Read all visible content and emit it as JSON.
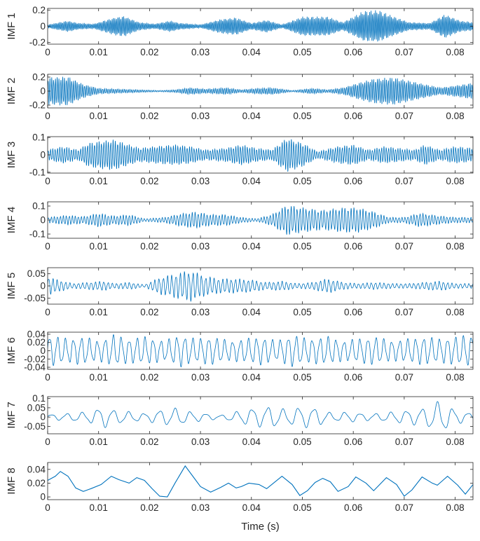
{
  "chart_data": {
    "type": "line",
    "xlabel": "Time (s)",
    "series_color": "#0072BD",
    "axis_color": "#262626",
    "x_range": [
      0,
      0.0835
    ],
    "x_ticks": [
      0,
      0.01,
      0.02,
      0.03,
      0.04,
      0.05,
      0.06,
      0.07,
      0.08
    ],
    "x_tick_labels": [
      "0",
      "0.01",
      "0.02",
      "0.03",
      "0.04",
      "0.05",
      "0.06",
      "0.07",
      "0.08"
    ],
    "panels": [
      {
        "ylabel": "IMF 1",
        "ylim": [
          -0.22,
          0.22
        ],
        "yticks": [
          -0.2,
          0,
          0.2
        ],
        "ytick_labels": [
          "-0.2",
          "0",
          "0.2"
        ],
        "freq_hz": 3500,
        "wave": "carrier",
        "envelope": [
          [
            0,
            0.02
          ],
          [
            0.004,
            0.07
          ],
          [
            0.006,
            0.04
          ],
          [
            0.009,
            0.03
          ],
          [
            0.013,
            0.11
          ],
          [
            0.015,
            0.13
          ],
          [
            0.018,
            0.05
          ],
          [
            0.021,
            0.03
          ],
          [
            0.024,
            0.07
          ],
          [
            0.026,
            0.04
          ],
          [
            0.03,
            0.02
          ],
          [
            0.034,
            0.09
          ],
          [
            0.037,
            0.11
          ],
          [
            0.04,
            0.04
          ],
          [
            0.043,
            0.08
          ],
          [
            0.046,
            0.02
          ],
          [
            0.05,
            0.12
          ],
          [
            0.055,
            0.12
          ],
          [
            0.058,
            0.05
          ],
          [
            0.062,
            0.19
          ],
          [
            0.065,
            0.2
          ],
          [
            0.068,
            0.12
          ],
          [
            0.071,
            0.05
          ],
          [
            0.075,
            0.04
          ],
          [
            0.078,
            0.15
          ],
          [
            0.081,
            0.07
          ],
          [
            0.0835,
            0.05
          ]
        ]
      },
      {
        "ylabel": "IMF 2",
        "ylim": [
          -0.24,
          0.24
        ],
        "yticks": [
          -0.2,
          0,
          0.2
        ],
        "ytick_labels": [
          "-0.2",
          "0",
          "0.2"
        ],
        "freq_hz": 2800,
        "wave": "carrier",
        "envelope": [
          [
            0,
            0.2
          ],
          [
            0.004,
            0.21
          ],
          [
            0.007,
            0.1
          ],
          [
            0.01,
            0.04
          ],
          [
            0.014,
            0.03
          ],
          [
            0.018,
            0.02
          ],
          [
            0.022,
            0.01
          ],
          [
            0.025,
            0.02
          ],
          [
            0.028,
            0.05
          ],
          [
            0.031,
            0.03
          ],
          [
            0.035,
            0.05
          ],
          [
            0.038,
            0.02
          ],
          [
            0.041,
            0.04
          ],
          [
            0.044,
            0.05
          ],
          [
            0.048,
            0.01
          ],
          [
            0.052,
            0.04
          ],
          [
            0.055,
            0.02
          ],
          [
            0.058,
            0.05
          ],
          [
            0.061,
            0.12
          ],
          [
            0.064,
            0.18
          ],
          [
            0.068,
            0.2
          ],
          [
            0.071,
            0.15
          ],
          [
            0.074,
            0.1
          ],
          [
            0.077,
            0.05
          ],
          [
            0.08,
            0.08
          ],
          [
            0.0835,
            0.12
          ]
        ]
      },
      {
        "ylabel": "IMF 3",
        "ylim": [
          -0.105,
          0.105
        ],
        "yticks": [
          -0.1,
          0,
          0.1
        ],
        "ytick_labels": [
          "-0.1",
          "0",
          "0.1"
        ],
        "freq_hz": 2200,
        "wave": "carrier",
        "envelope": [
          [
            0,
            0.03
          ],
          [
            0.003,
            0.05
          ],
          [
            0.006,
            0.03
          ],
          [
            0.008,
            0.07
          ],
          [
            0.01,
            0.08
          ],
          [
            0.013,
            0.09
          ],
          [
            0.016,
            0.06
          ],
          [
            0.018,
            0.04
          ],
          [
            0.021,
            0.05
          ],
          [
            0.025,
            0.06
          ],
          [
            0.028,
            0.05
          ],
          [
            0.031,
            0.03
          ],
          [
            0.035,
            0.04
          ],
          [
            0.038,
            0.06
          ],
          [
            0.041,
            0.04
          ],
          [
            0.044,
            0.03
          ],
          [
            0.047,
            0.1
          ],
          [
            0.05,
            0.07
          ],
          [
            0.053,
            0.02
          ],
          [
            0.057,
            0.05
          ],
          [
            0.06,
            0.06
          ],
          [
            0.063,
            0.03
          ],
          [
            0.066,
            0.05
          ],
          [
            0.069,
            0.04
          ],
          [
            0.072,
            0.03
          ],
          [
            0.074,
            0.06
          ],
          [
            0.077,
            0.03
          ],
          [
            0.08,
            0.05
          ],
          [
            0.0835,
            0.04
          ]
        ]
      },
      {
        "ylabel": "IMF 4",
        "ylim": [
          -0.13,
          0.13
        ],
        "yticks": [
          -0.1,
          0,
          0.1
        ],
        "ytick_labels": [
          "-0.1",
          "0",
          "0.1"
        ],
        "freq_hz": 1700,
        "wave": "carrier",
        "envelope": [
          [
            0,
            0.02
          ],
          [
            0.004,
            0.035
          ],
          [
            0.007,
            0.025
          ],
          [
            0.01,
            0.05
          ],
          [
            0.013,
            0.03
          ],
          [
            0.016,
            0.04
          ],
          [
            0.019,
            0.01
          ],
          [
            0.023,
            0.02
          ],
          [
            0.026,
            0.045
          ],
          [
            0.029,
            0.06
          ],
          [
            0.032,
            0.04
          ],
          [
            0.035,
            0.04
          ],
          [
            0.038,
            0.02
          ],
          [
            0.041,
            0.01
          ],
          [
            0.044,
            0.04
          ],
          [
            0.047,
            0.11
          ],
          [
            0.05,
            0.09
          ],
          [
            0.054,
            0.07
          ],
          [
            0.058,
            0.09
          ],
          [
            0.061,
            0.09
          ],
          [
            0.064,
            0.06
          ],
          [
            0.067,
            0.02
          ],
          [
            0.07,
            0.02
          ],
          [
            0.073,
            0.05
          ],
          [
            0.077,
            0.03
          ],
          [
            0.08,
            0.02
          ],
          [
            0.0835,
            0.02
          ]
        ]
      },
      {
        "ylabel": "IMF 5",
        "ylim": [
          -0.075,
          0.075
        ],
        "yticks": [
          -0.05,
          0,
          0.05
        ],
        "ytick_labels": [
          "-0.05",
          "0",
          "0.05"
        ],
        "freq_hz": 1200,
        "wave": "carrier",
        "envelope": [
          [
            0,
            0.04
          ],
          [
            0.002,
            0.025
          ],
          [
            0.005,
            0.01
          ],
          [
            0.008,
            0.015
          ],
          [
            0.011,
            0.02
          ],
          [
            0.013,
            0.01
          ],
          [
            0.016,
            0.015
          ],
          [
            0.019,
            0.005
          ],
          [
            0.022,
            0.035
          ],
          [
            0.025,
            0.05
          ],
          [
            0.028,
            0.065
          ],
          [
            0.031,
            0.04
          ],
          [
            0.034,
            0.03
          ],
          [
            0.037,
            0.03
          ],
          [
            0.04,
            0.025
          ],
          [
            0.043,
            0.015
          ],
          [
            0.046,
            0.02
          ],
          [
            0.049,
            0.01
          ],
          [
            0.052,
            0.015
          ],
          [
            0.055,
            0.03
          ],
          [
            0.058,
            0.015
          ],
          [
            0.061,
            0.01
          ],
          [
            0.064,
            0.015
          ],
          [
            0.068,
            0.01
          ],
          [
            0.071,
            0.01
          ],
          [
            0.074,
            0.015
          ],
          [
            0.077,
            0.02
          ],
          [
            0.08,
            0.01
          ],
          [
            0.0835,
            0.01
          ]
        ]
      },
      {
        "ylabel": "IMF 6",
        "ylim": [
          -0.045,
          0.045
        ],
        "yticks": [
          -0.04,
          -0.02,
          0,
          0.02,
          0.04
        ],
        "ytick_labels": [
          "-0.04",
          "-0.02",
          "0",
          "0.02",
          "0.04"
        ],
        "freq_hz": 640,
        "wave": "carrier",
        "envelope": [
          [
            0,
            0.04
          ],
          [
            0.004,
            0.03
          ],
          [
            0.007,
            0.035
          ],
          [
            0.01,
            0.025
          ],
          [
            0.013,
            0.04
          ],
          [
            0.016,
            0.03
          ],
          [
            0.019,
            0.035
          ],
          [
            0.023,
            0.025
          ],
          [
            0.026,
            0.04
          ],
          [
            0.029,
            0.03
          ],
          [
            0.032,
            0.035
          ],
          [
            0.036,
            0.025
          ],
          [
            0.039,
            0.03
          ],
          [
            0.042,
            0.035
          ],
          [
            0.045,
            0.025
          ],
          [
            0.048,
            0.04
          ],
          [
            0.051,
            0.03
          ],
          [
            0.055,
            0.035
          ],
          [
            0.058,
            0.025
          ],
          [
            0.061,
            0.03
          ],
          [
            0.064,
            0.035
          ],
          [
            0.068,
            0.025
          ],
          [
            0.071,
            0.03
          ],
          [
            0.074,
            0.035
          ],
          [
            0.077,
            0.03
          ],
          [
            0.08,
            0.035
          ],
          [
            0.0835,
            0.04
          ]
        ]
      },
      {
        "ylabel": "IMF 7",
        "ylim": [
          -0.09,
          0.11
        ],
        "yticks": [
          -0.05,
          0,
          0.05,
          0.1
        ],
        "ytick_labels": [
          "-0.05",
          "0",
          "0.05",
          "0.1"
        ],
        "freq_hz": 330,
        "wave": "carrier",
        "envelope": [
          [
            0,
            0.015
          ],
          [
            0.004,
            0.02
          ],
          [
            0.008,
            0.03
          ],
          [
            0.011,
            0.06
          ],
          [
            0.013,
            0.04
          ],
          [
            0.016,
            0.03
          ],
          [
            0.019,
            0.02
          ],
          [
            0.022,
            0.04
          ],
          [
            0.025,
            0.05
          ],
          [
            0.028,
            0.03
          ],
          [
            0.031,
            0.02
          ],
          [
            0.034,
            0.01
          ],
          [
            0.037,
            0.03
          ],
          [
            0.04,
            0.05
          ],
          [
            0.044,
            0.06
          ],
          [
            0.047,
            0.04
          ],
          [
            0.05,
            0.06
          ],
          [
            0.053,
            0.05
          ],
          [
            0.056,
            0.02
          ],
          [
            0.059,
            0.03
          ],
          [
            0.062,
            0.02
          ],
          [
            0.065,
            0.02
          ],
          [
            0.068,
            0.03
          ],
          [
            0.071,
            0.04
          ],
          [
            0.074,
            0.05
          ],
          [
            0.077,
            0.09
          ],
          [
            0.08,
            0.04
          ],
          [
            0.0835,
            0.02
          ]
        ]
      },
      {
        "ylabel": "IMF 8",
        "ylim": [
          -0.004,
          0.05
        ],
        "yticks": [
          0,
          0.02,
          0.04
        ],
        "ytick_labels": [
          "0",
          "0.02",
          "0.04"
        ],
        "wave": "points",
        "points": [
          [
            0,
            0.024
          ],
          [
            0.0015,
            0.03
          ],
          [
            0.0025,
            0.037
          ],
          [
            0.004,
            0.03
          ],
          [
            0.0055,
            0.013
          ],
          [
            0.007,
            0.008
          ],
          [
            0.0085,
            0.012
          ],
          [
            0.0105,
            0.018
          ],
          [
            0.0125,
            0.03
          ],
          [
            0.014,
            0.025
          ],
          [
            0.016,
            0.02
          ],
          [
            0.0175,
            0.028
          ],
          [
            0.019,
            0.024
          ],
          [
            0.0205,
            0.012
          ],
          [
            0.022,
            0.001
          ],
          [
            0.0235,
            0.0
          ],
          [
            0.025,
            0.02
          ],
          [
            0.027,
            0.045
          ],
          [
            0.0285,
            0.03
          ],
          [
            0.03,
            0.015
          ],
          [
            0.032,
            0.007
          ],
          [
            0.034,
            0.014
          ],
          [
            0.0355,
            0.02
          ],
          [
            0.037,
            0.013
          ],
          [
            0.038,
            0.015
          ],
          [
            0.0395,
            0.02
          ],
          [
            0.0415,
            0.018
          ],
          [
            0.043,
            0.012
          ],
          [
            0.0445,
            0.021
          ],
          [
            0.046,
            0.03
          ],
          [
            0.048,
            0.018
          ],
          [
            0.0495,
            0.002
          ],
          [
            0.051,
            0.009
          ],
          [
            0.0525,
            0.021
          ],
          [
            0.054,
            0.027
          ],
          [
            0.0555,
            0.022
          ],
          [
            0.057,
            0.008
          ],
          [
            0.059,
            0.015
          ],
          [
            0.0605,
            0.029
          ],
          [
            0.0625,
            0.02
          ],
          [
            0.064,
            0.009
          ],
          [
            0.0665,
            0.028
          ],
          [
            0.0685,
            0.018
          ],
          [
            0.07,
            0.001
          ],
          [
            0.0715,
            0.01
          ],
          [
            0.0735,
            0.029
          ],
          [
            0.0755,
            0.02
          ],
          [
            0.0765,
            0.017
          ],
          [
            0.0785,
            0.03
          ],
          [
            0.0805,
            0.017
          ],
          [
            0.082,
            0.004
          ],
          [
            0.0835,
            0.018
          ]
        ]
      }
    ]
  }
}
